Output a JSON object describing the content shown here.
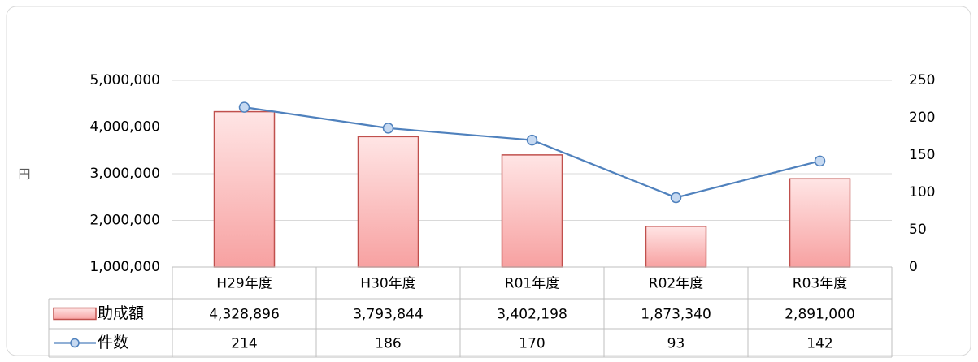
{
  "chart_data": {
    "type": "bar",
    "y_label": "円",
    "categories": [
      "H29年度",
      "H30年度",
      "R01年度",
      "R02年度",
      "R03年度"
    ],
    "series": [
      {
        "name": "助成額",
        "type": "bar",
        "color": "#c0504d",
        "values": [
          4328896,
          3793844,
          3402198,
          1873340,
          2891000
        ],
        "value_labels": [
          "4,328,896",
          "3,793,844",
          "3,402,198",
          "1,873,340",
          "2,891,000"
        ]
      },
      {
        "name": "件数",
        "type": "line",
        "axis": "y2",
        "color": "#4f81bd",
        "values": [
          214,
          186,
          170,
          93,
          142
        ]
      }
    ],
    "ylim": [
      1000000,
      5000000
    ],
    "yticks": [
      {
        "value": 1000000,
        "label": "1,000,000"
      },
      {
        "value": 2000000,
        "label": "2,000,000"
      },
      {
        "value": 3000000,
        "label": "3,000,000"
      },
      {
        "value": 4000000,
        "label": "4,000,000"
      },
      {
        "value": 5000000,
        "label": "5,000,000"
      }
    ],
    "y2lim": [
      0,
      250
    ],
    "y2ticks": [
      0,
      50,
      100,
      150,
      200,
      250
    ],
    "grid": true,
    "data_table": true
  }
}
